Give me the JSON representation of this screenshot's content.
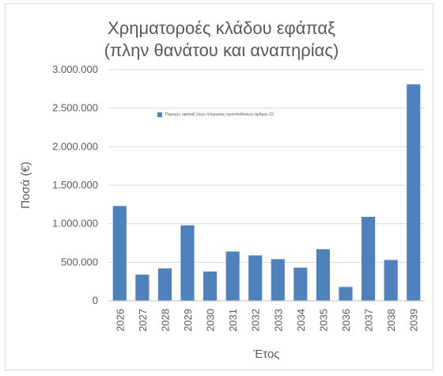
{
  "chart_data": {
    "type": "bar",
    "title_line1": "Χρηματοροές κλάδου εφάπαξ",
    "title_line2": "(πλην θανάτου και αναπηρίας)",
    "xlabel": "Έτος",
    "ylabel": "Ποσά (€)",
    "ylim": [
      0,
      3000000
    ],
    "yticks": [
      0,
      500000,
      1000000,
      1500000,
      2000000,
      2500000,
      3000000
    ],
    "ytick_labels": [
      "0",
      "500.000",
      "1.000.000",
      "1.500.000",
      "2.000.000",
      "2.500.000",
      "3.000.000"
    ],
    "legend_position": "top",
    "grid": true,
    "bar_color": "#4f81bd",
    "categories": [
      "2026",
      "2027",
      "2028",
      "2029",
      "2030",
      "2031",
      "2032",
      "2033",
      "2034",
      "2035",
      "2036",
      "2037",
      "2038",
      "2039"
    ],
    "series": [
      {
        "name": "Παροχές εφάπαξ λόγω πλήρωσης προϋποθέσεων άρθρου 22",
        "values": [
          1230000,
          340000,
          420000,
          980000,
          380000,
          640000,
          590000,
          540000,
          430000,
          670000,
          180000,
          1090000,
          530000,
          2810000
        ]
      }
    ]
  }
}
